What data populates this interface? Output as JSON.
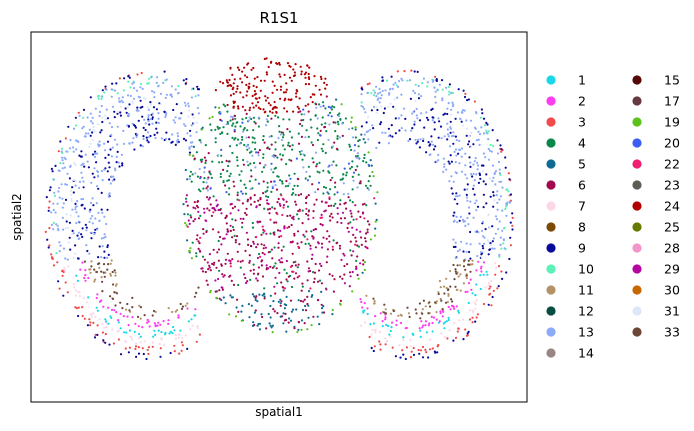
{
  "chart_data": {
    "type": "scatter",
    "title": "R1S1",
    "xlabel": "spatial1",
    "ylabel": "spatial2",
    "grid": false,
    "xticks": [],
    "yticks": [],
    "legend_placement": "right",
    "series": [
      {
        "name": "1",
        "color": "#18d8ea"
      },
      {
        "name": "2",
        "color": "#ff3cf2"
      },
      {
        "name": "3",
        "color": "#f24a4a"
      },
      {
        "name": "4",
        "color": "#0a874a"
      },
      {
        "name": "5",
        "color": "#0e6b92"
      },
      {
        "name": "6",
        "color": "#a2084e"
      },
      {
        "name": "7",
        "color": "#fbd7e8"
      },
      {
        "name": "8",
        "color": "#7a4a00"
      },
      {
        "name": "9",
        "color": "#070a9a"
      },
      {
        "name": "10",
        "color": "#5af2b6"
      },
      {
        "name": "11",
        "color": "#b39268"
      },
      {
        "name": "12",
        "color": "#074d40"
      },
      {
        "name": "13",
        "color": "#8caaf8"
      },
      {
        "name": "14",
        "color": "#9a8484"
      },
      {
        "name": "15",
        "color": "#560808"
      },
      {
        "name": "17",
        "color": "#653a40"
      },
      {
        "name": "19",
        "color": "#5cc21a"
      },
      {
        "name": "20",
        "color": "#3c5ef2"
      },
      {
        "name": "22",
        "color": "#f02070"
      },
      {
        "name": "23",
        "color": "#5a5e54"
      },
      {
        "name": "24",
        "color": "#b10000"
      },
      {
        "name": "25",
        "color": "#667a00"
      },
      {
        "name": "28",
        "color": "#f295c8"
      },
      {
        "name": "29",
        "color": "#b4079e"
      },
      {
        "name": "30",
        "color": "#c86600"
      },
      {
        "name": "31",
        "color": "#dae8f8"
      },
      {
        "name": "33",
        "color": "#6c4636"
      }
    ]
  }
}
